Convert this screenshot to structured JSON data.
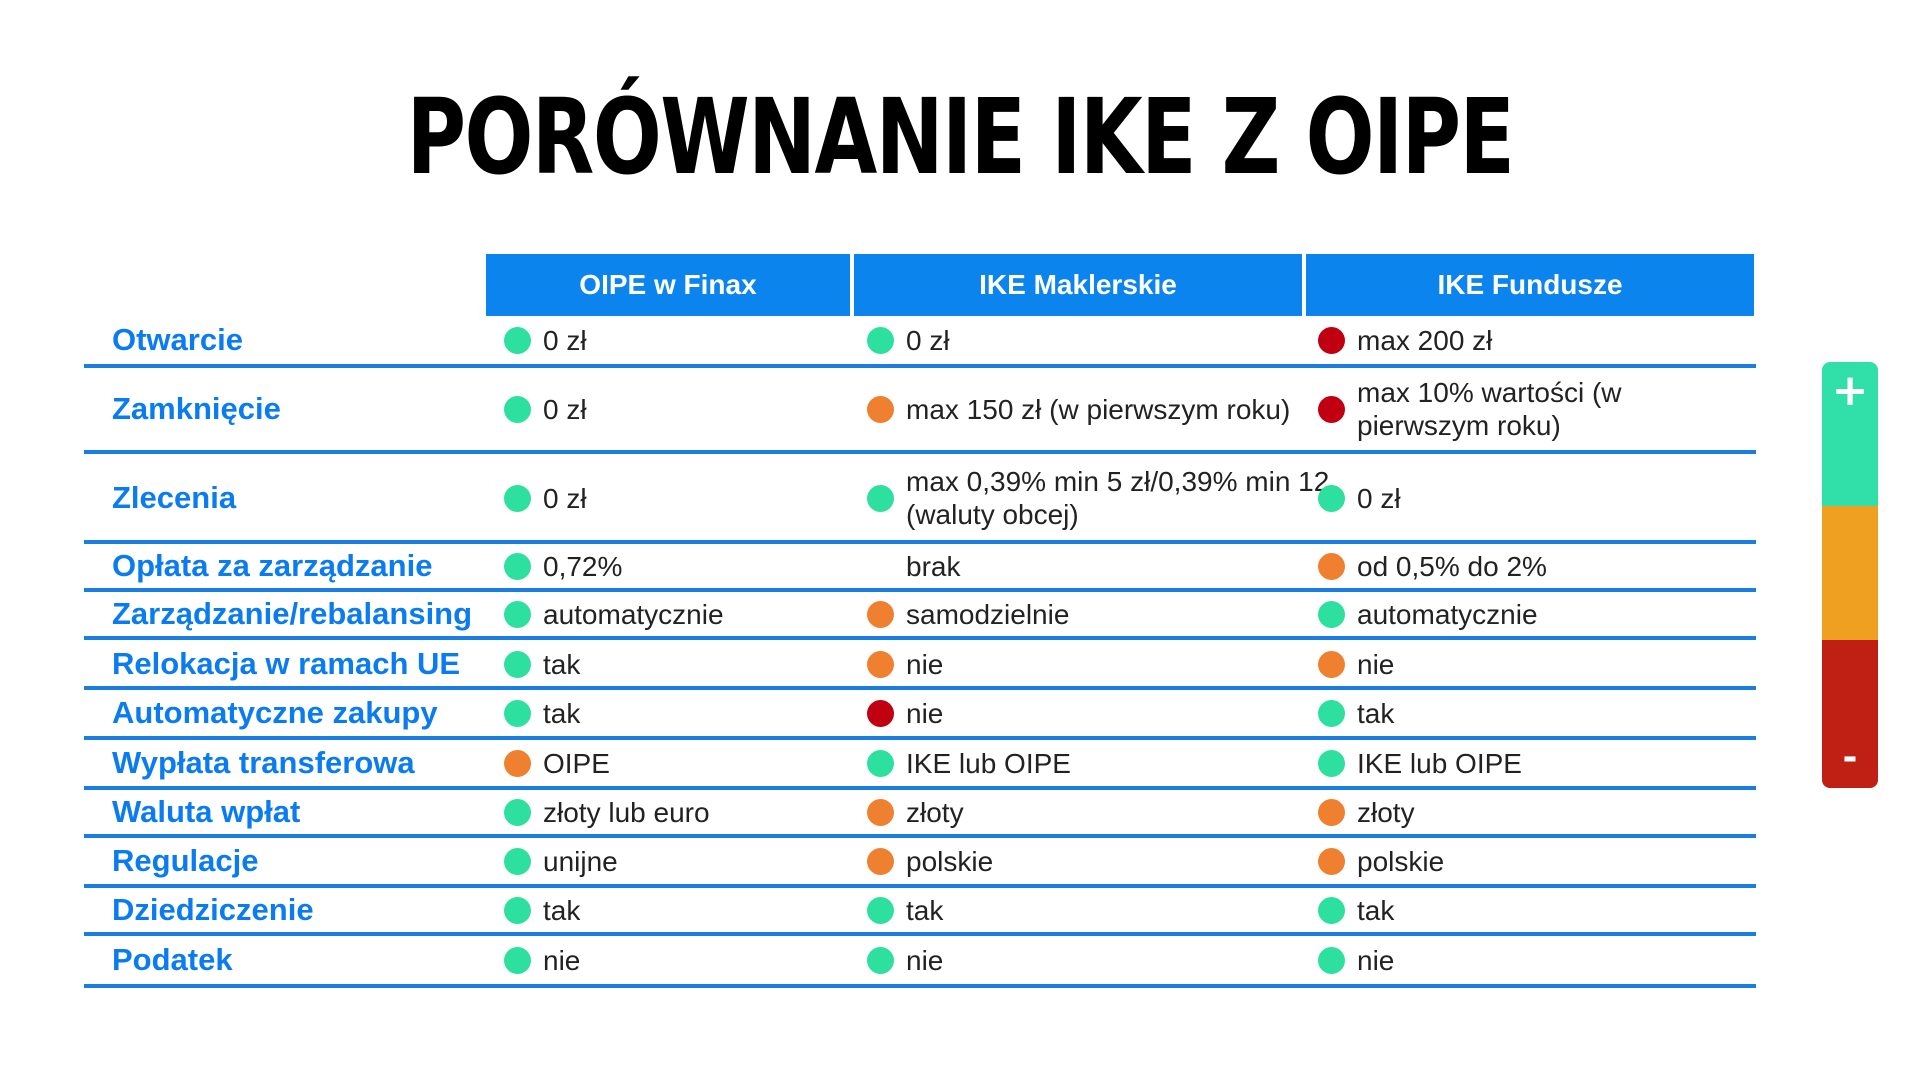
{
  "title": "PORÓWNANIE IKE Z OIPE",
  "colors": {
    "header_bg": "#0b84ee",
    "label": "#0b7cf0",
    "line": "#1a7de0",
    "green": "#2ee0a0",
    "orange": "#ee8030",
    "red": "#c00010"
  },
  "columns": [
    "OIPE w Finax",
    "IKE Maklerskie",
    "IKE Fundusze"
  ],
  "rows": [
    {
      "label": "Otwarcie",
      "cells": [
        {
          "text": "0 zł",
          "status": "green"
        },
        {
          "text": "0 zł",
          "status": "green"
        },
        {
          "text": "max 200 zł",
          "status": "red"
        }
      ]
    },
    {
      "label": "Zamknięcie",
      "cells": [
        {
          "text": "0 zł",
          "status": "green"
        },
        {
          "text": "max 150 zł (w pierwszym roku)",
          "status": "orange"
        },
        {
          "text": "max 10% wartości (w pierwszym roku)",
          "status": "red"
        }
      ]
    },
    {
      "label": "Zlecenia",
      "cells": [
        {
          "text": "0 zł",
          "status": "green"
        },
        {
          "text": "max 0,39% min 5 zł/0,39% min 12 (waluty obcej)",
          "status": "green"
        },
        {
          "text": "0 zł",
          "status": "green"
        }
      ]
    },
    {
      "label": "Opłata za zarządzanie",
      "cells": [
        {
          "text": "0,72%",
          "status": "green"
        },
        {
          "text": "brak",
          "status": "none"
        },
        {
          "text": "od 0,5% do 2%",
          "status": "orange"
        }
      ]
    },
    {
      "label": "Zarządzanie/rebalansing",
      "cells": [
        {
          "text": "automatycznie",
          "status": "green"
        },
        {
          "text": "samodzielnie",
          "status": "orange"
        },
        {
          "text": "automatycznie",
          "status": "green"
        }
      ]
    },
    {
      "label": "Relokacja w ramach UE",
      "cells": [
        {
          "text": "tak",
          "status": "green"
        },
        {
          "text": "nie",
          "status": "orange"
        },
        {
          "text": "nie",
          "status": "orange"
        }
      ]
    },
    {
      "label": "Automatyczne zakupy",
      "cells": [
        {
          "text": "tak",
          "status": "green"
        },
        {
          "text": "nie",
          "status": "red"
        },
        {
          "text": "tak",
          "status": "green"
        }
      ]
    },
    {
      "label": "Wypłata transferowa",
      "cells": [
        {
          "text": "OIPE",
          "status": "orange"
        },
        {
          "text": "IKE lub OIPE",
          "status": "green"
        },
        {
          "text": "IKE lub OIPE",
          "status": "green"
        }
      ]
    },
    {
      "label": "Waluta wpłat",
      "cells": [
        {
          "text": "złoty lub euro",
          "status": "green"
        },
        {
          "text": "złoty",
          "status": "orange"
        },
        {
          "text": "złoty",
          "status": "orange"
        }
      ]
    },
    {
      "label": "Regulacje",
      "cells": [
        {
          "text": "unijne",
          "status": "green"
        },
        {
          "text": "polskie",
          "status": "orange"
        },
        {
          "text": "polskie",
          "status": "orange"
        }
      ]
    },
    {
      "label": "Dziedziczenie",
      "cells": [
        {
          "text": "tak",
          "status": "green"
        },
        {
          "text": "tak",
          "status": "green"
        },
        {
          "text": "tak",
          "status": "green"
        }
      ]
    },
    {
      "label": "Podatek",
      "cells": [
        {
          "text": "nie",
          "status": "green"
        },
        {
          "text": "nie",
          "status": "green"
        },
        {
          "text": "nie",
          "status": "green"
        }
      ]
    }
  ],
  "legend": {
    "plus": "+",
    "minus": "-",
    "colors": [
      "#30e0a8",
      "#f0a020",
      "#c02014"
    ]
  }
}
